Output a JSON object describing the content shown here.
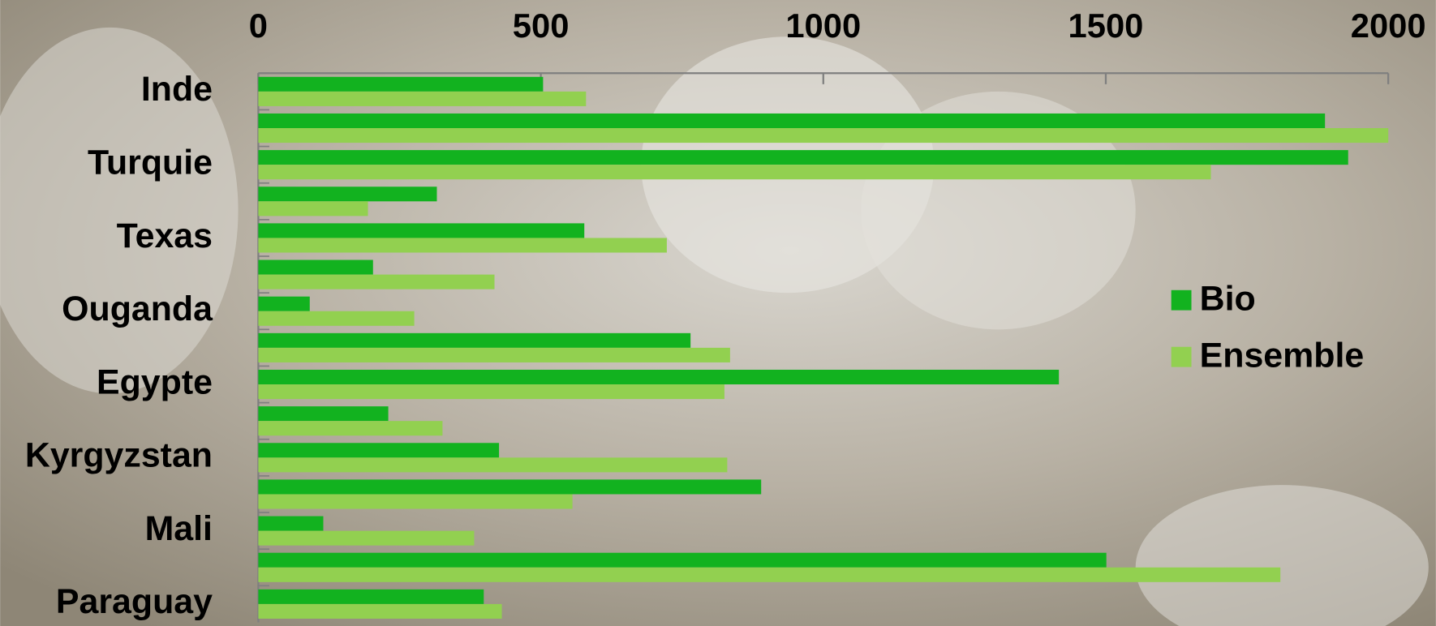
{
  "chart_data": {
    "type": "bar",
    "orientation": "horizontal",
    "categories": [
      "Inde",
      null,
      "Turquie",
      null,
      "Texas",
      null,
      "Ouganda",
      null,
      "Egypte",
      null,
      "Kyrgyzstan",
      null,
      "Mali",
      null,
      "Paraguay"
    ],
    "series": [
      {
        "name": "Bio",
        "color": "#12b21f",
        "values": [
          504,
          1888,
          1929,
          316,
          577,
          203,
          91,
          765,
          1417,
          230,
          426,
          890,
          115,
          1501,
          399
        ]
      },
      {
        "name": "Ensemble",
        "color": "#92d050",
        "values": [
          580,
          2000,
          1686,
          194,
          723,
          418,
          276,
          835,
          825,
          326,
          830,
          556,
          382,
          1809,
          431
        ]
      }
    ],
    "xlim": [
      0,
      2000
    ],
    "xticks": [
      0,
      500,
      1000,
      1500,
      2000
    ],
    "legend": "right"
  }
}
